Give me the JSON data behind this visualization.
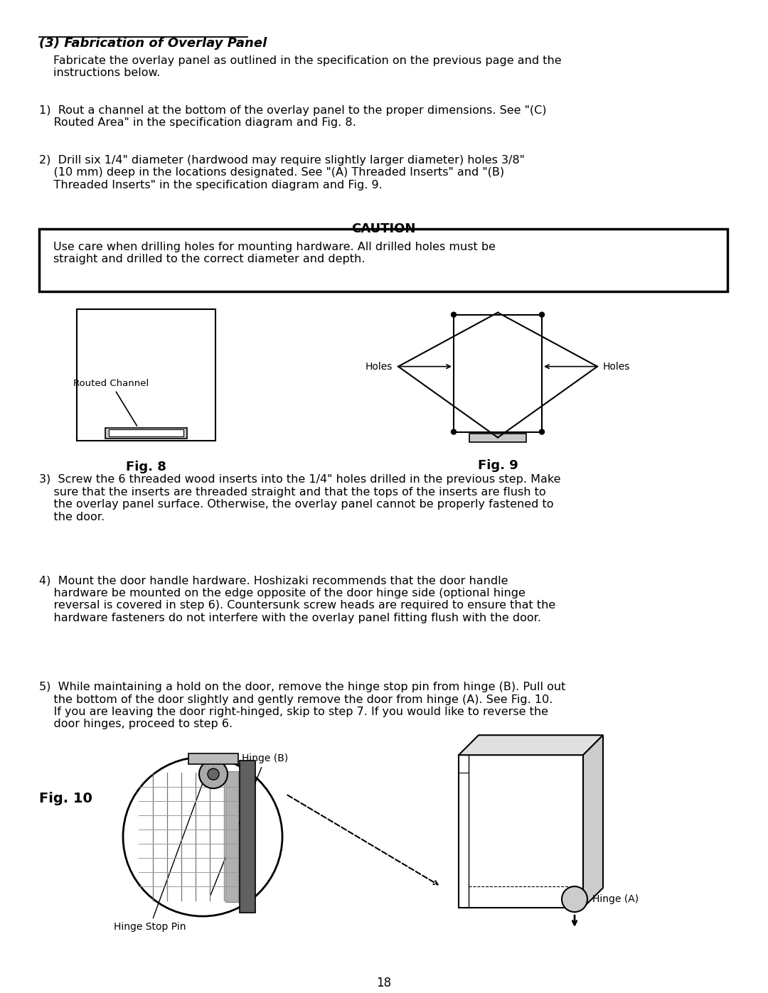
{
  "title": "(3) Fabrication of Overlay Panel",
  "bg_color": "#ffffff",
  "text_color": "#000000",
  "page_number": "18",
  "intro_text": "Fabricate the overlay panel as outlined in the specification on the previous page and the\ninstructions below.",
  "step1": "1)  Rout a channel at the bottom of the overlay panel to the proper dimensions. See \"(C)\n    Routed Area\" in the specification diagram and Fig. 8.",
  "step2": "2)  Drill six 1/4\" diameter (hardwood may require slightly larger diameter) holes 3/8\"\n    (10 mm) deep in the locations designated. See \"(A) Threaded Inserts\" and \"(B)\n    Threaded Inserts\" in the specification diagram and Fig. 9.",
  "caution_title": "CAUTION",
  "caution_text": "Use care when drilling holes for mounting hardware. All drilled holes must be\nstraight and drilled to the correct diameter and depth.",
  "fig8_label": "Fig. 8",
  "fig9_label": "Fig. 9",
  "fig10_label": "Fig. 10",
  "routed_channel_label": "Routed Channel",
  "holes_label": "Holes",
  "hinge_b_label": "Hinge (B)",
  "hinge_a_label": "Hinge (A)",
  "hinge_stop_pin_label": "Hinge Stop Pin",
  "step3": "3)  Screw the 6 threaded wood inserts into the 1/4\" holes drilled in the previous step. Make\n    sure that the inserts are threaded straight and that the tops of the inserts are flush to\n    the overlay panel surface. Otherwise, the overlay panel cannot be properly fastened to\n    the door.",
  "step4": "4)  Mount the door handle hardware. Hoshizaki recommends that the door handle\n    hardware be mounted on the edge opposite of the door hinge side (optional hinge\n    reversal is covered in step 6). Countersunk screw heads are required to ensure that the\n    hardware fasteners do not interfere with the overlay panel fitting flush with the door.",
  "step5": "5)  While maintaining a hold on the door, remove the hinge stop pin from hinge (B). Pull out\n    the bottom of the door slightly and gently remove the door from hinge (A). See Fig. 10.\n    If you are leaving the door right-hinged, skip to step 7. If you would like to reverse the\n    door hinges, proceed to step 6."
}
